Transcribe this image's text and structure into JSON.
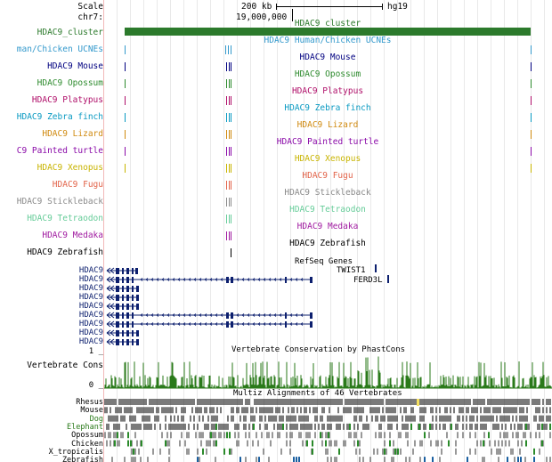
{
  "ruler": {
    "scale_label": "Scale",
    "chrom_label": "chr7:",
    "scale_value": "200 kb",
    "assembly": "hg19",
    "position": "19,000,000"
  },
  "colors": {
    "cluster": "#2c7a2c",
    "human_chicken": "#3399cc",
    "mouse": "#000080",
    "opossum": "#2e8b2e",
    "platypus": "#b0106a",
    "zebra_finch": "#0a9ac2",
    "lizard": "#d08a10",
    "painted_turtle": "#8a0aa8",
    "xenopus": "#c8b400",
    "fugu": "#e2644a",
    "stickleback": "#8a8a8a",
    "tetraodon": "#66cc99",
    "medaka": "#a01aa0",
    "zebrafish": "#000000",
    "refseq": "#0c1f6e",
    "cons": "#2a7a1a"
  },
  "tracks": [
    {
      "label": "HDAC9_cluster",
      "center_title": "HDAC9_cluster",
      "color_key": "cluster"
    },
    {
      "label": "man/Chicken UCNEs",
      "center_title": "HDAC9 Human/Chicken UCNEs",
      "color_key": "human_chicken"
    },
    {
      "label": "HDAC9 Mouse",
      "center_title": "HDAC9 Mouse",
      "color_key": "mouse"
    },
    {
      "label": "HDAC9 Opossum",
      "center_title": "HDAC9 Opossum",
      "color_key": "opossum"
    },
    {
      "label": "HDAC9 Platypus",
      "center_title": "HDAC9 Platypus",
      "color_key": "platypus"
    },
    {
      "label": "HDAC9 Zebra finch",
      "center_title": "HDAC9 Zebra finch",
      "color_key": "zebra_finch"
    },
    {
      "label": "HDAC9 Lizard",
      "center_title": "HDAC9 Lizard",
      "color_key": "lizard"
    },
    {
      "label": "C9 Painted turtle",
      "center_title": "HDAC9 Painted turtle",
      "color_key": "painted_turtle"
    },
    {
      "label": "HDAC9 Xenopus",
      "center_title": "HDAC9 Xenopus",
      "color_key": "xenopus"
    },
    {
      "label": "HDAC9 Fugu",
      "center_title": "HDAC9 Fugu",
      "color_key": "fugu"
    },
    {
      "label": "HDAC9 Stickleback",
      "center_title": "HDAC9 Stickleback",
      "color_key": "stickleback"
    },
    {
      "label": "HDAC9 Tetraodon",
      "center_title": "HDAC9 Tetraodon",
      "color_key": "tetraodon"
    },
    {
      "label": "HDAC9 Medaka",
      "center_title": "HDAC9 Medaka",
      "color_key": "medaka"
    },
    {
      "label": "HDAC9 Zebrafish",
      "center_title": "HDAC9 Zebrafish",
      "color_key": "zebrafish"
    }
  ],
  "refseq": {
    "title": "RefSeq Genes",
    "gene_rows": [
      "HDAC9",
      "HDAC9",
      "HDAC9",
      "HDAC9",
      "HDAC9",
      "HDAC9",
      "HDAC9",
      "HDAC9",
      "HDAC9"
    ],
    "other_genes": [
      "TWIST1",
      "FERD3L"
    ]
  },
  "conservation": {
    "title": "Vertebrate Conservation by PhastCons",
    "label": "Vertebrate Cons",
    "axis_top": "1 _",
    "axis_bottom": "0 _"
  },
  "multiz": {
    "title": "Multiz Alignments of 46 Vertebrates",
    "species": [
      {
        "name": "Rhesus",
        "color": "#000000"
      },
      {
        "name": "Mouse",
        "color": "#000000"
      },
      {
        "name": "Dog",
        "color": "#2a7a1a"
      },
      {
        "name": "Elephant",
        "color": "#2a7a1a"
      },
      {
        "name": "Opossum",
        "color": "#000000"
      },
      {
        "name": "Chicken",
        "color": "#000000"
      },
      {
        "name": "X_tropicalis",
        "color": "#000000"
      },
      {
        "name": "Zebrafish",
        "color": "#000000"
      }
    ]
  }
}
